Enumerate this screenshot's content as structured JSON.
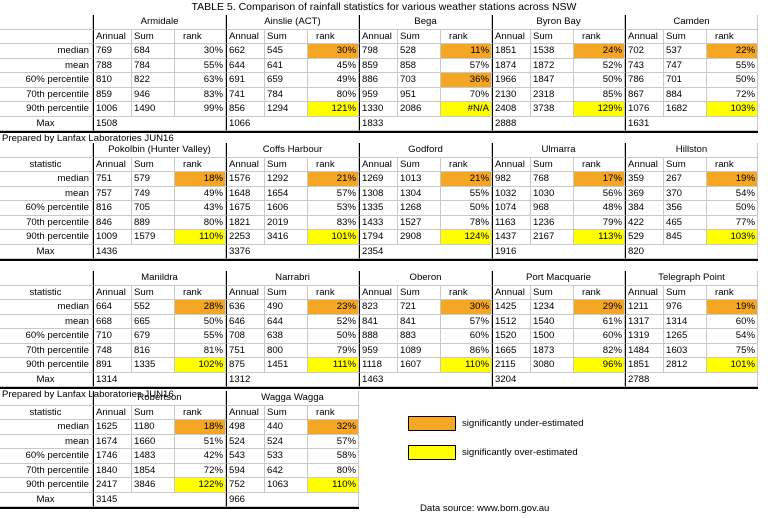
{
  "title": "TABLE 5. Comparison of rainfall statistics for various weather stations across NSW",
  "statistic_header": "statistic",
  "column_headers": [
    "Annual",
    "Sum",
    "rank"
  ],
  "row_labels": [
    "median",
    "mean",
    "60% percentile",
    "70th percentile",
    "90th percentile",
    "Max"
  ],
  "colors": {
    "under": "#f5a623",
    "over": "#ffff00"
  },
  "blocks": [
    {
      "prepared_after": "Prepared by Lanfax Laboratories JUN16",
      "show_statistic_header": false,
      "stations": [
        {
          "name": "Armidale",
          "rows": [
            [
              "769",
              "684",
              "30%",
              ""
            ],
            [
              "788",
              "784",
              "55%",
              ""
            ],
            [
              "810",
              "822",
              "63%",
              ""
            ],
            [
              "859",
              "946",
              "83%",
              ""
            ],
            [
              "1006",
              "1490",
              "99%",
              ""
            ]
          ],
          "max": "1508"
        },
        {
          "name": "Ainslie (ACT)",
          "rows": [
            [
              "662",
              "545",
              "30%",
              "under"
            ],
            [
              "644",
              "641",
              "45%",
              ""
            ],
            [
              "691",
              "659",
              "49%",
              ""
            ],
            [
              "741",
              "784",
              "80%",
              ""
            ],
            [
              "856",
              "1294",
              "121%",
              "over"
            ]
          ],
          "max": "1066"
        },
        {
          "name": "Bega",
          "rows": [
            [
              "798",
              "528",
              "11%",
              "under"
            ],
            [
              "859",
              "858",
              "57%",
              ""
            ],
            [
              "886",
              "703",
              "36%",
              "under"
            ],
            [
              "959",
              "951",
              "70%",
              ""
            ],
            [
              "1330",
              "2086",
              "#N/A",
              "over"
            ]
          ],
          "max": "1833"
        },
        {
          "name": "Byron Bay",
          "rows": [
            [
              "1851",
              "1538",
              "24%",
              "under"
            ],
            [
              "1874",
              "1872",
              "52%",
              ""
            ],
            [
              "1966",
              "1847",
              "50%",
              ""
            ],
            [
              "2130",
              "2318",
              "85%",
              ""
            ],
            [
              "2408",
              "3738",
              "129%",
              "over"
            ]
          ],
          "max": "2888"
        },
        {
          "name": "Camden",
          "rows": [
            [
              "702",
              "537",
              "22%",
              "under"
            ],
            [
              "743",
              "747",
              "55%",
              ""
            ],
            [
              "786",
              "701",
              "50%",
              ""
            ],
            [
              "867",
              "884",
              "72%",
              ""
            ],
            [
              "1076",
              "1682",
              "103%",
              "over"
            ]
          ],
          "max": "1631"
        }
      ]
    },
    {
      "prepared_after": "",
      "show_statistic_header": true,
      "stations": [
        {
          "name": "Pokolbin (Hunter Valley)",
          "rows": [
            [
              "751",
              "579",
              "18%",
              "under"
            ],
            [
              "757",
              "749",
              "49%",
              ""
            ],
            [
              "816",
              "705",
              "43%",
              ""
            ],
            [
              "846",
              "889",
              "80%",
              ""
            ],
            [
              "1009",
              "1579",
              "110%",
              "over"
            ]
          ],
          "max": "1436"
        },
        {
          "name": "Coffs Harbour",
          "rows": [
            [
              "1576",
              "1292",
              "21%",
              "under"
            ],
            [
              "1648",
              "1654",
              "57%",
              ""
            ],
            [
              "1675",
              "1606",
              "53%",
              ""
            ],
            [
              "1821",
              "2019",
              "83%",
              ""
            ],
            [
              "2253",
              "3416",
              "101%",
              "over"
            ]
          ],
          "max": "3376"
        },
        {
          "name": "Godford",
          "rows": [
            [
              "1269",
              "1013",
              "21%",
              "under"
            ],
            [
              "1308",
              "1304",
              "55%",
              ""
            ],
            [
              "1335",
              "1268",
              "50%",
              ""
            ],
            [
              "1433",
              "1527",
              "78%",
              ""
            ],
            [
              "1794",
              "2908",
              "124%",
              "over"
            ]
          ],
          "max": "2354"
        },
        {
          "name": "Ulmarra",
          "rows": [
            [
              "982",
              "768",
              "17%",
              "under"
            ],
            [
              "1032",
              "1030",
              "56%",
              ""
            ],
            [
              "1074",
              "968",
              "48%",
              ""
            ],
            [
              "1163",
              "1236",
              "79%",
              ""
            ],
            [
              "1437",
              "2167",
              "113%",
              "over"
            ]
          ],
          "max": "1916"
        },
        {
          "name": "Hillston",
          "rows": [
            [
              "359",
              "267",
              "19%",
              "under"
            ],
            [
              "369",
              "370",
              "54%",
              ""
            ],
            [
              "384",
              "356",
              "50%",
              ""
            ],
            [
              "422",
              "465",
              "77%",
              ""
            ],
            [
              "529",
              "845",
              "103%",
              "over"
            ]
          ],
          "max": "820"
        }
      ]
    },
    {
      "prepared_after": "Prepared by Lanfax Laboratories JUN16",
      "show_statistic_header": true,
      "stations": [
        {
          "name": "Manildra",
          "rows": [
            [
              "664",
              "552",
              "28%",
              "under"
            ],
            [
              "668",
              "665",
              "50%",
              ""
            ],
            [
              "710",
              "679",
              "55%",
              ""
            ],
            [
              "748",
              "816",
              "81%",
              ""
            ],
            [
              "891",
              "1335",
              "102%",
              "over"
            ]
          ],
          "max": "1314"
        },
        {
          "name": "Narrabri",
          "rows": [
            [
              "636",
              "490",
              "23%",
              "under"
            ],
            [
              "646",
              "644",
              "52%",
              ""
            ],
            [
              "708",
              "638",
              "50%",
              ""
            ],
            [
              "751",
              "800",
              "79%",
              ""
            ],
            [
              "875",
              "1451",
              "111%",
              "over"
            ]
          ],
          "max": "1312"
        },
        {
          "name": "Oberon",
          "rows": [
            [
              "823",
              "721",
              "30%",
              "under"
            ],
            [
              "841",
              "841",
              "57%",
              ""
            ],
            [
              "888",
              "883",
              "60%",
              ""
            ],
            [
              "959",
              "1089",
              "86%",
              ""
            ],
            [
              "1118",
              "1607",
              "110%",
              "over"
            ]
          ],
          "max": "1463"
        },
        {
          "name": "Port Macquarie",
          "rows": [
            [
              "1425",
              "1234",
              "29%",
              "under"
            ],
            [
              "1512",
              "1540",
              "61%",
              ""
            ],
            [
              "1520",
              "1500",
              "60%",
              ""
            ],
            [
              "1665",
              "1873",
              "82%",
              ""
            ],
            [
              "2115",
              "3080",
              "96%",
              "over"
            ]
          ],
          "max": "3204"
        },
        {
          "name": "Telegraph Point",
          "rows": [
            [
              "1211",
              "976",
              "19%",
              "under"
            ],
            [
              "1317",
              "1314",
              "60%",
              ""
            ],
            [
              "1319",
              "1265",
              "54%",
              ""
            ],
            [
              "1484",
              "1603",
              "75%",
              ""
            ],
            [
              "1851",
              "2812",
              "101%",
              "over"
            ]
          ],
          "max": "2788"
        }
      ]
    },
    {
      "prepared_after": "",
      "show_statistic_header": true,
      "stations": [
        {
          "name": "Robertson",
          "rows": [
            [
              "1625",
              "1180",
              "18%",
              "under"
            ],
            [
              "1674",
              "1660",
              "51%",
              ""
            ],
            [
              "1746",
              "1483",
              "42%",
              ""
            ],
            [
              "1840",
              "1854",
              "72%",
              ""
            ],
            [
              "2417",
              "3846",
              "122%",
              "over"
            ]
          ],
          "max": "3145"
        },
        {
          "name": "Wagga Wagga",
          "rows": [
            [
              "498",
              "440",
              "32%",
              "under"
            ],
            [
              "524",
              "524",
              "57%",
              ""
            ],
            [
              "543",
              "533",
              "58%",
              ""
            ],
            [
              "594",
              "642",
              "80%",
              ""
            ],
            [
              "752",
              "1063",
              "110%",
              "over"
            ]
          ],
          "max": "966"
        }
      ]
    }
  ],
  "legend": [
    {
      "key": "under",
      "label": "significantly under-estimated"
    },
    {
      "key": "over",
      "label": "significantly over-estimated"
    }
  ],
  "source": "Data source: www.bom.gov.au"
}
